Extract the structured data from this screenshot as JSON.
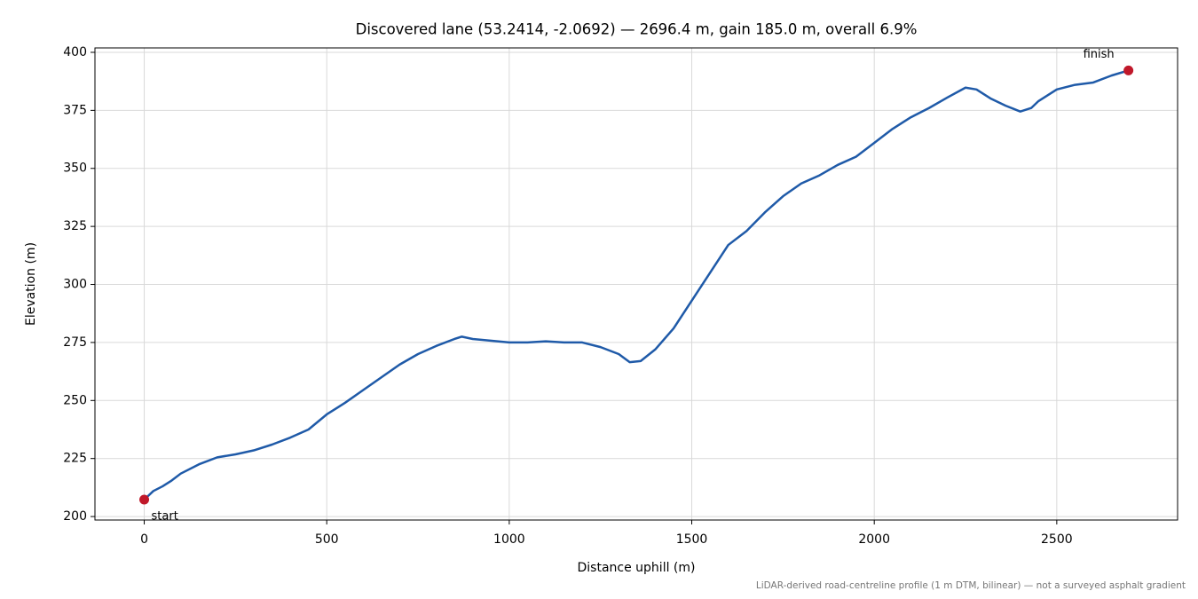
{
  "chart_data": {
    "type": "line",
    "title": "Discovered lane (53.2414, -2.0692) — 2696.4 m, gain 185.0 m, overall 6.9%",
    "x_label": "Distance uphill (m)",
    "y_label": "Elevation (m)",
    "footnote": "LiDAR-derived road-centreline profile (1 m DTM, bilinear) — not a surveyed asphalt gradient",
    "x": [
      0,
      25,
      50,
      75,
      100,
      150,
      200,
      250,
      300,
      350,
      400,
      450,
      500,
      550,
      600,
      650,
      700,
      750,
      800,
      850,
      870,
      900,
      1000,
      1050,
      1100,
      1150,
      1200,
      1250,
      1300,
      1330,
      1360,
      1400,
      1450,
      1500,
      1550,
      1600,
      1650,
      1700,
      1750,
      1800,
      1850,
      1900,
      1950,
      2000,
      2050,
      2100,
      2150,
      2200,
      2250,
      2280,
      2320,
      2360,
      2400,
      2430,
      2450,
      2500,
      2550,
      2600,
      2650,
      2696.4
    ],
    "series": [
      {
        "name": "Elevation",
        "color": "#1f5aa8",
        "values": [
          207.3,
          211,
          213,
          215.5,
          218.5,
          222.5,
          225.5,
          226.8,
          228.5,
          231,
          234,
          237.5,
          244,
          249,
          254.5,
          260,
          265.5,
          270,
          273.5,
          276.5,
          277.5,
          276.5,
          275,
          275,
          275.5,
          275,
          275,
          273,
          270,
          266.5,
          267,
          272,
          281,
          293,
          305,
          317,
          323,
          331,
          338,
          343.5,
          347,
          351.5,
          355,
          361,
          367,
          372,
          376,
          380.5,
          384.8,
          384,
          380,
          377,
          374.5,
          376,
          379,
          384,
          386,
          387,
          390,
          392.2
        ]
      }
    ],
    "markers": [
      {
        "label": "start",
        "x": 0,
        "y": 207.3
      },
      {
        "label": "finish",
        "x": 2696.4,
        "y": 392.2
      }
    ],
    "marker_color": "#c0182a",
    "xlim": [
      -135,
      2831
    ],
    "ylim": [
      198.5,
      401.9
    ],
    "xticks": [
      0,
      500,
      1000,
      1500,
      2000,
      2500
    ],
    "yticks": [
      200,
      225,
      250,
      275,
      300,
      325,
      350,
      375,
      400
    ],
    "grid": true
  }
}
